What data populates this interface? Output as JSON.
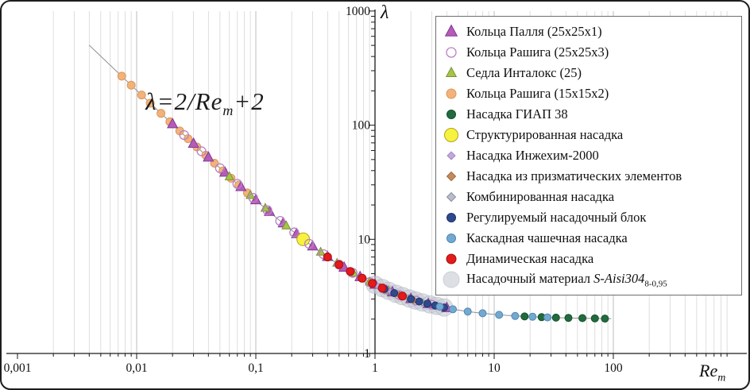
{
  "figure": {
    "background": "#ffffff",
    "border_color": "#1d1d1d"
  },
  "chart_data": {
    "type": "scatter",
    "x_scale": "log",
    "y_scale": "log",
    "x_axis": {
      "label": "Re",
      "label_sub": "m",
      "min": 0.001,
      "max": 1000,
      "tick_values": [
        0.001,
        0.01,
        0.1,
        1,
        10,
        100
      ],
      "tick_labels": [
        "0,001",
        "0,01",
        "0,1",
        "1",
        "10",
        "100"
      ]
    },
    "y_axis": {
      "label": "λ",
      "min": 1,
      "max": 1000,
      "tick_values": [
        1,
        10,
        100,
        1000
      ],
      "tick_labels": [
        "1",
        "10",
        "100",
        "1000"
      ]
    },
    "annotation": {
      "prefix": "λ=2/Re",
      "sub": "m",
      "suffix": "+2"
    },
    "curve": {
      "formula": "lambda = 2/Re_m + 2",
      "color": "#8f8f8f",
      "re_start": 0.004,
      "re_end": 100
    },
    "grid": {
      "vertical_minor": true,
      "horizontal": false,
      "minor_color": "#d6d6d6",
      "decade_color": "#bdbdbd"
    },
    "series": [
      {
        "id": "palla-rings",
        "label": "Кольца Палля (25x25x1)",
        "marker": "triangle",
        "fill": "#b75bb7",
        "stroke": "#7d3c98",
        "size": 6,
        "legend_size": 7,
        "opacity": 1,
        "layer": 2,
        "points": [
          [
            0.02,
            102.0
          ],
          [
            0.03,
            68.7
          ],
          [
            0.04,
            52.0
          ],
          [
            0.055,
            38.4
          ],
          [
            0.075,
            28.7
          ],
          [
            0.1,
            22.0
          ],
          [
            0.13,
            17.4
          ],
          [
            0.17,
            13.8
          ],
          [
            0.22,
            11.1
          ],
          [
            0.3,
            8.67
          ],
          [
            0.4,
            7.0
          ],
          [
            0.55,
            5.64
          ],
          [
            0.75,
            4.67
          ],
          [
            1.0,
            4.0
          ],
          [
            1.4,
            3.43
          ],
          [
            2.0,
            3.0
          ],
          [
            2.8,
            2.71
          ],
          [
            4.0,
            2.5
          ]
        ]
      },
      {
        "id": "raschig-rings-25",
        "label": "Кольца Рашига (25x25x3)",
        "marker": "open-circle",
        "fill": "none",
        "stroke": "#bb7fc4",
        "size": 5.5,
        "legend_size": 6,
        "opacity": 1,
        "layer": 3,
        "points": [
          [
            0.025,
            82.0
          ],
          [
            0.035,
            59.1
          ],
          [
            0.05,
            42.0
          ],
          [
            0.07,
            30.6
          ],
          [
            0.095,
            23.1
          ],
          [
            0.125,
            18.0
          ],
          [
            0.16,
            14.5
          ],
          [
            0.21,
            11.5
          ],
          [
            0.28,
            9.14
          ],
          [
            0.37,
            7.41
          ],
          [
            0.5,
            6.0
          ],
          [
            0.65,
            5.08
          ],
          [
            0.9,
            4.22
          ],
          [
            1.2,
            3.67
          ],
          [
            1.6,
            3.25
          ],
          [
            2.2,
            2.91
          ],
          [
            3.0,
            2.67
          ]
        ]
      },
      {
        "id": "intalox-saddles",
        "label": "Седла Инталокс (25)",
        "marker": "triangle",
        "fill": "#a6c544",
        "stroke": "#7a923a",
        "size": 5,
        "legend_size": 6,
        "opacity": 1,
        "layer": 2,
        "points": [
          [
            0.06,
            35.3
          ],
          [
            0.09,
            24.2
          ],
          [
            0.12,
            18.7
          ],
          [
            0.18,
            13.1
          ],
          [
            0.25,
            10.0
          ],
          [
            0.35,
            7.71
          ],
          [
            0.48,
            6.17
          ],
          [
            0.66,
            5.03
          ],
          [
            0.9,
            4.22
          ],
          [
            1.3,
            3.54
          ]
        ]
      },
      {
        "id": "raschig-rings-15",
        "label": "Кольца Рашига (15x15x2)",
        "marker": "circle",
        "fill": "#f2b279",
        "stroke": "#d9985e",
        "size": 5,
        "legend_size": 6,
        "opacity": 1,
        "layer": 1,
        "points": [
          [
            0.0075,
            268.7
          ],
          [
            0.009,
            224.2
          ],
          [
            0.011,
            183.8
          ],
          [
            0.013,
            155.8
          ],
          [
            0.016,
            127.0
          ],
          [
            0.019,
            107.3
          ],
          [
            0.023,
            89.0
          ],
          [
            0.027,
            76.1
          ],
          [
            0.032,
            64.5
          ],
          [
            0.038,
            54.6
          ],
          [
            0.045,
            46.4
          ],
          [
            0.053,
            39.7
          ],
          [
            0.062,
            34.3
          ],
          [
            0.072,
            29.8
          ],
          [
            0.085,
            25.5
          ]
        ]
      },
      {
        "id": "giap-38",
        "label": "Насадка ГИАП 38",
        "marker": "circle",
        "fill": "#226b3f",
        "stroke": "#14502c",
        "size": 4.5,
        "legend_size": 5.5,
        "opacity": 1,
        "layer": 4,
        "points": [
          [
            18.0,
            2.11
          ],
          [
            25.0,
            2.08
          ],
          [
            33.0,
            2.06
          ],
          [
            42.0,
            2.05
          ],
          [
            55.0,
            2.04
          ],
          [
            70.0,
            2.03
          ],
          [
            85.0,
            2.02
          ]
        ]
      },
      {
        "id": "structured-packing",
        "label": "Структурированная насадка",
        "marker": "circle",
        "fill": "#f7f23e",
        "stroke": "#b0a41e",
        "size": 8,
        "legend_size": 8.5,
        "opacity": 1,
        "layer": 2,
        "points": [
          [
            0.25,
            10.0
          ]
        ]
      },
      {
        "id": "inzhekhim-2000",
        "label": "Насадка Инжехим-2000",
        "marker": "diamond",
        "fill": "#c3a8dd",
        "stroke": "#9f84c4",
        "size": 3.5,
        "legend_size": 4.5,
        "opacity": 1,
        "layer": 4,
        "points": [
          [
            0.8,
            4.5
          ],
          [
            1.05,
            3.9
          ],
          [
            1.35,
            3.48
          ],
          [
            1.7,
            3.18
          ]
        ]
      },
      {
        "id": "prismatic-elements",
        "label": "Насадка из призматических элементов",
        "marker": "diamond",
        "fill": "#c48a5a",
        "stroke": "#9c6a3e",
        "size": 4,
        "legend_size": 5,
        "opacity": 1,
        "layer": 3,
        "points": [
          [
            1.1,
            3.82
          ],
          [
            1.6,
            3.25
          ],
          [
            2.1,
            2.95
          ]
        ]
      },
      {
        "id": "combined-packing",
        "label": "Комбинированная насадка",
        "marker": "diamond",
        "fill": "#b9bcc9",
        "stroke": "#8b8fa0",
        "size": 4,
        "legend_size": 5,
        "opacity": 1,
        "layer": 3,
        "points": [
          [
            1.9,
            3.05
          ],
          [
            2.5,
            2.8
          ]
        ]
      },
      {
        "id": "adjustable-packing-block",
        "label": "Регулируемый насадочный блок",
        "marker": "circle",
        "fill": "#2e4a8f",
        "stroke": "#1f3363",
        "size": 4.5,
        "legend_size": 5.5,
        "opacity": 1,
        "layer": 4,
        "points": [
          [
            1.2,
            3.67
          ],
          [
            1.45,
            3.38
          ],
          [
            1.7,
            3.18
          ],
          [
            2.0,
            3.0
          ],
          [
            2.35,
            2.85
          ],
          [
            2.75,
            2.73
          ],
          [
            3.2,
            2.63
          ],
          [
            3.8,
            2.53
          ]
        ]
      },
      {
        "id": "cascade-cup-packing",
        "label": "Каскадная чашечная насадка",
        "marker": "circle",
        "fill": "#74a9cf",
        "stroke": "#4c87b5",
        "size": 4.5,
        "legend_size": 5.5,
        "opacity": 1,
        "layer": 4,
        "points": [
          [
            3.5,
            2.57
          ],
          [
            4.5,
            2.44
          ],
          [
            6.0,
            2.33
          ],
          [
            8.0,
            2.25
          ],
          [
            11.0,
            2.18
          ],
          [
            15.0,
            2.13
          ],
          [
            21.0,
            2.1
          ],
          [
            28.0,
            2.07
          ]
        ]
      },
      {
        "id": "dynamic-packing",
        "label": "Динамическая насадка",
        "marker": "circle",
        "fill": "#e41a1c",
        "stroke": "#a50f0f",
        "size": 5,
        "legend_size": 6,
        "opacity": 1,
        "layer": 5,
        "points": [
          [
            0.4,
            7.0
          ],
          [
            0.5,
            6.0
          ],
          [
            0.62,
            5.23
          ],
          [
            0.78,
            4.56
          ],
          [
            0.95,
            4.11
          ],
          [
            1.15,
            3.74
          ],
          [
            1.7,
            3.18
          ]
        ]
      },
      {
        "id": "packing-material-aisi304",
        "label": "Насадочный материал ",
        "label_italic": "S-Aisi304",
        "label_sub": "8-0,95",
        "marker": "circle",
        "fill": "#c7cbd4",
        "stroke": "#a9afbc",
        "size": 11,
        "legend_size": 10,
        "opacity": 0.6,
        "layer": 0,
        "points": [
          [
            1.0,
            4.0
          ],
          [
            1.15,
            3.74
          ],
          [
            1.3,
            3.54
          ],
          [
            1.5,
            3.33
          ],
          [
            1.7,
            3.18
          ],
          [
            1.95,
            3.03
          ],
          [
            2.2,
            2.91
          ],
          [
            2.5,
            2.8
          ],
          [
            2.9,
            2.69
          ],
          [
            3.3,
            2.61
          ],
          [
            3.8,
            2.53
          ]
        ]
      }
    ]
  }
}
